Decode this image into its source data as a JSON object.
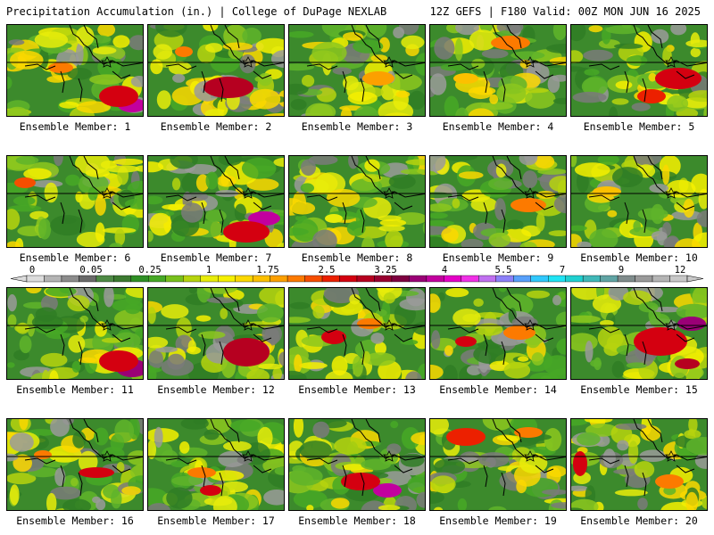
{
  "header": {
    "title_left": "Precipitation Accumulation (in.) | College of DuPage NEXLAB",
    "title_right": "12Z GEFS | F180 Valid: 00Z MON JUN 16 2025"
  },
  "legend": {
    "labels": [
      "0",
      "0.05",
      "0.25",
      "1",
      "1.75",
      "2.5",
      "3.25",
      "4",
      "5.5",
      "7",
      "9",
      "12"
    ],
    "colors": [
      "#dcdcdc",
      "#b4b4b4",
      "#8c8c8c",
      "#6a6a6a",
      "#4e8a45",
      "#3c7a30",
      "#2f8f25",
      "#46a826",
      "#78c01c",
      "#b6d40e",
      "#e8ec0a",
      "#f6f000",
      "#fbd800",
      "#fcc000",
      "#fca000",
      "#fc7a00",
      "#f64e00",
      "#ec2000",
      "#d40010",
      "#b60020",
      "#980030",
      "#7e0040",
      "#9a0076",
      "#c2009e",
      "#e400c6",
      "#f030e6",
      "#c070f0",
      "#8c80f8",
      "#58a0fa",
      "#30c8fc",
      "#20e4f4",
      "#20d0d0",
      "#40b8b8",
      "#60a4a4",
      "#808c8c",
      "#9a9a9a",
      "#b4b4b4",
      "#c8c8c8"
    ]
  },
  "members": [
    {
      "label": "Ensemble Member: 1",
      "max_intensity": "high"
    },
    {
      "label": "Ensemble Member: 2",
      "max_intensity": "high"
    },
    {
      "label": "Ensemble Member: 3",
      "max_intensity": "moderate"
    },
    {
      "label": "Ensemble Member: 4",
      "max_intensity": "moderate"
    },
    {
      "label": "Ensemble Member: 5",
      "max_intensity": "high"
    },
    {
      "label": "Ensemble Member: 6",
      "max_intensity": "moderate"
    },
    {
      "label": "Ensemble Member: 7",
      "max_intensity": "very-high"
    },
    {
      "label": "Ensemble Member: 8",
      "max_intensity": "low"
    },
    {
      "label": "Ensemble Member: 9",
      "max_intensity": "moderate"
    },
    {
      "label": "Ensemble Member: 10",
      "max_intensity": "moderate"
    },
    {
      "label": "Ensemble Member: 11",
      "max_intensity": "very-high"
    },
    {
      "label": "Ensemble Member: 12",
      "max_intensity": "very-high"
    },
    {
      "label": "Ensemble Member: 13",
      "max_intensity": "high"
    },
    {
      "label": "Ensemble Member: 14",
      "max_intensity": "high"
    },
    {
      "label": "Ensemble Member: 15",
      "max_intensity": "very-high"
    },
    {
      "label": "Ensemble Member: 16",
      "max_intensity": "high"
    },
    {
      "label": "Ensemble Member: 17",
      "max_intensity": "high"
    },
    {
      "label": "Ensemble Member: 18",
      "max_intensity": "very-high"
    },
    {
      "label": "Ensemble Member: 19",
      "max_intensity": "high"
    },
    {
      "label": "Ensemble Member: 20",
      "max_intensity": "high"
    }
  ]
}
